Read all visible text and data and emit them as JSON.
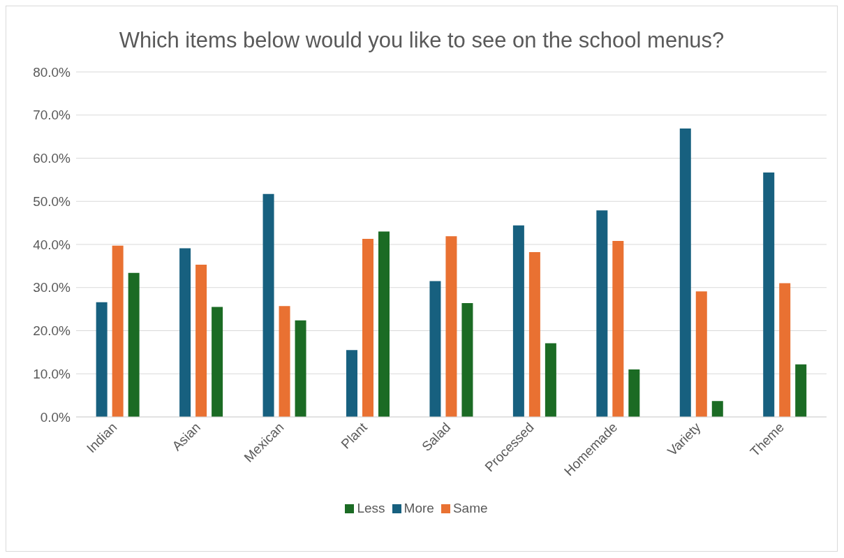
{
  "chart_data": {
    "type": "bar",
    "title": "Which items below would you like to see on the school menus?",
    "categories": [
      "Indian",
      "Asian",
      "Mexican",
      "Plant",
      "Salad",
      "Processed",
      "Homemade",
      "Variety",
      "Theme"
    ],
    "series": [
      {
        "name": "More",
        "color": "#17607f",
        "values": [
          26.6,
          39.1,
          51.7,
          15.5,
          31.5,
          44.4,
          47.9,
          66.9,
          56.7
        ]
      },
      {
        "name": "Same",
        "color": "#e97132",
        "values": [
          39.7,
          35.3,
          25.7,
          41.3,
          41.9,
          38.2,
          40.8,
          29.1,
          31.0
        ]
      },
      {
        "name": "Less",
        "color": "#1b6b24",
        "values": [
          33.4,
          25.5,
          22.4,
          43.0,
          26.4,
          17.1,
          11.0,
          3.7,
          12.2
        ]
      }
    ],
    "ylim": [
      0,
      80
    ],
    "yticks": [
      {
        "value": 0,
        "label": "0.0%"
      },
      {
        "value": 10,
        "label": "10.0%"
      },
      {
        "value": 20,
        "label": "20.0%"
      },
      {
        "value": 30,
        "label": "30.0%"
      },
      {
        "value": 40,
        "label": "40.0%"
      },
      {
        "value": 50,
        "label": "50.0%"
      },
      {
        "value": 60,
        "label": "60.0%"
      },
      {
        "value": 70,
        "label": "70.0%"
      },
      {
        "value": 80,
        "label": "80.0%"
      }
    ],
    "grid": "y",
    "legend": "bottom"
  }
}
